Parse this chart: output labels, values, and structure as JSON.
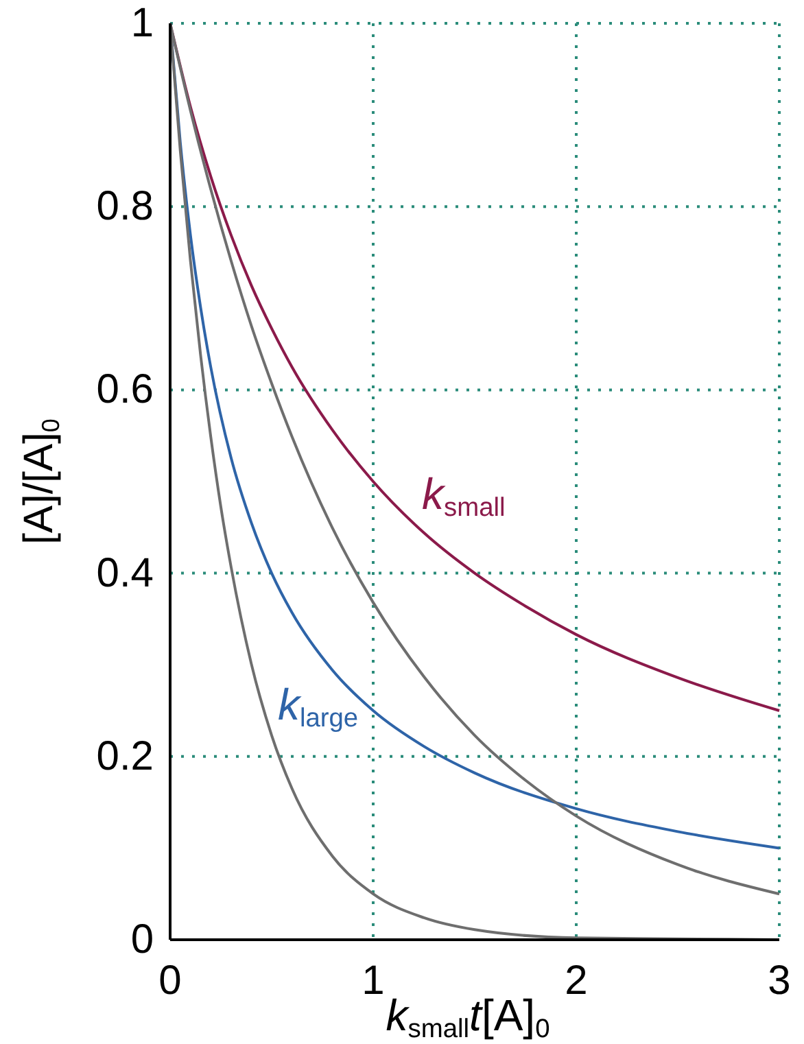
{
  "chart_data": {
    "type": "line",
    "xlabel": "k$_{small}$t[A]$_{0}$",
    "ylabel": "[A]/[A]$_{0}$",
    "xlim": [
      0,
      3
    ],
    "ylim": [
      0,
      1
    ],
    "xticks": [
      0,
      1,
      2,
      3
    ],
    "yticks": [
      0,
      0.2,
      0.4,
      0.6,
      0.8,
      1
    ],
    "grid": true,
    "marker": "none",
    "line_style": "solid",
    "series": [
      {
        "name": "k$_{small}$",
        "color": "#8b1a4a",
        "x": [
          0,
          0.1,
          0.2,
          0.3,
          0.4,
          0.5,
          0.6,
          0.8,
          1,
          1.25,
          1.5,
          1.75,
          2,
          2.5,
          3
        ],
        "values": [
          1,
          0.909,
          0.833,
          0.769,
          0.714,
          0.667,
          0.625,
          0.556,
          0.5,
          0.444,
          0.4,
          0.364,
          0.333,
          0.286,
          0.25
        ]
      },
      {
        "name": "k$_{large}$",
        "color": "#2e64a8",
        "x": [
          0,
          0.05,
          0.1,
          0.15,
          0.2,
          0.3,
          0.4,
          0.5,
          0.6,
          0.8,
          1,
          1.25,
          1.5,
          2,
          2.5,
          3
        ],
        "values": [
          1,
          0.87,
          0.769,
          0.69,
          0.625,
          0.526,
          0.455,
          0.4,
          0.357,
          0.294,
          0.25,
          0.211,
          0.182,
          0.143,
          0.118,
          0.1
        ]
      },
      {
        "color": "#6e6e6e",
        "x": [
          0,
          0.1,
          0.2,
          0.3,
          0.4,
          0.5,
          0.6,
          0.8,
          1,
          1.25,
          1.5,
          1.75,
          2,
          2.5,
          3
        ],
        "values": [
          1,
          0.905,
          0.819,
          0.741,
          0.67,
          0.607,
          0.549,
          0.449,
          0.368,
          0.287,
          0.223,
          0.174,
          0.135,
          0.082,
          0.05
        ]
      },
      {
        "color": "#6e6e6e",
        "x": [
          0,
          0.05,
          0.1,
          0.15,
          0.2,
          0.25,
          0.3,
          0.4,
          0.5,
          0.6,
          0.8,
          1,
          1.25,
          1.5,
          2,
          2.5,
          3
        ],
        "values": [
          1,
          0.861,
          0.741,
          0.638,
          0.549,
          0.472,
          0.407,
          0.301,
          0.223,
          0.165,
          0.091,
          0.05,
          0.024,
          0.011,
          0.002,
          0.001,
          0
        ]
      }
    ]
  }
}
